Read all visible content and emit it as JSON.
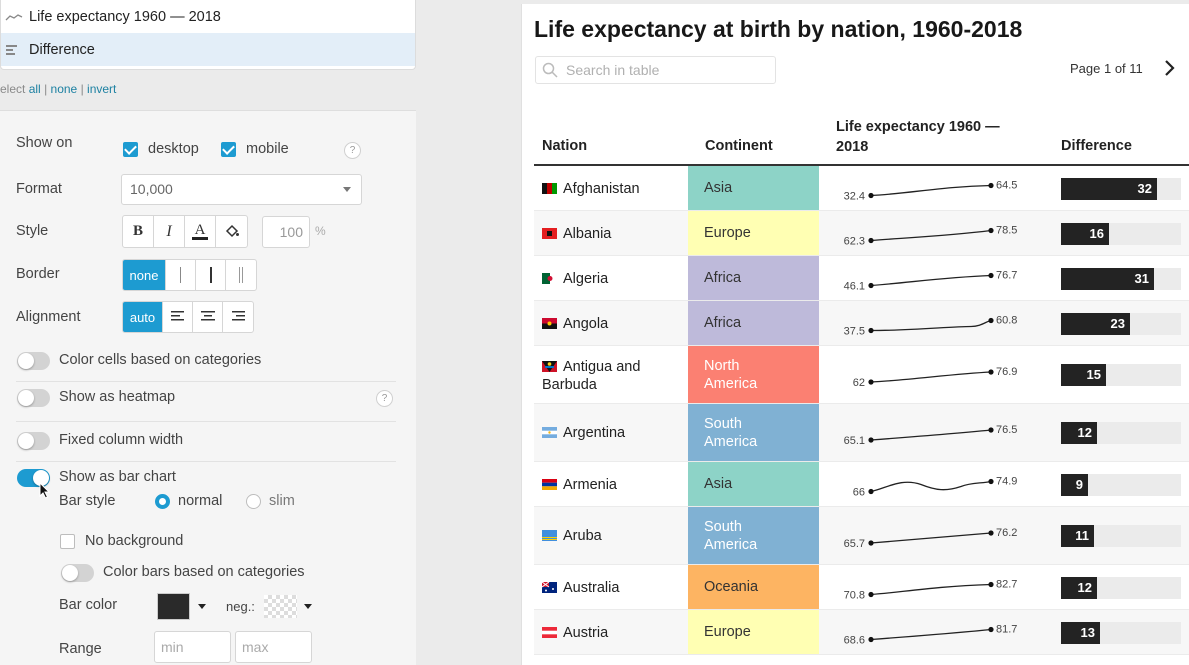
{
  "columns_list": {
    "items": [
      {
        "label": "Life expectancy 1960 — 2018",
        "icon": "sparkline-icon",
        "active": false
      },
      {
        "label": "Difference",
        "icon": "bar-icon",
        "active": true
      }
    ]
  },
  "select": {
    "prefix": "elect",
    "all": "all",
    "none": "none",
    "invert": "invert",
    "sep": "|"
  },
  "settings": {
    "show_on": {
      "label": "Show on",
      "desktop": "desktop",
      "mobile": "mobile",
      "help": "?"
    },
    "format": {
      "label": "Format",
      "value": "10,000"
    },
    "style": {
      "label": "Style",
      "bold": "B",
      "italic": "I",
      "color": "A",
      "opacity": "100",
      "unit": "%"
    },
    "border": {
      "label": "Border",
      "selected": "none"
    },
    "alignment": {
      "label": "Alignment",
      "selected": "auto"
    },
    "color_cells": {
      "label": "Color cells based on categories"
    },
    "heatmap": {
      "label": "Show as heatmap",
      "help": "?"
    },
    "fixed_width": {
      "label": "Fixed column width"
    },
    "bar_chart": {
      "label": "Show as bar chart"
    },
    "bar_style": {
      "label": "Bar style",
      "normal": "normal",
      "slim": "slim"
    },
    "no_background": {
      "label": "No background"
    },
    "color_bars": {
      "label": "Color bars based on categories"
    },
    "bar_color": {
      "label": "Bar color",
      "neg": "neg.:",
      "color": "#2a2a2a"
    },
    "range": {
      "label": "Range",
      "min": "min",
      "max": "max"
    }
  },
  "table": {
    "title": "Life expectancy at birth by nation, 1960-2018",
    "search_placeholder": "Search in table",
    "pager": "Page 1 of 11",
    "headers": {
      "nation": "Nation",
      "continent": "Continent",
      "life1": "Life expectancy 1960 —",
      "life2": "2018",
      "difference": "Difference"
    },
    "continent_colors": {
      "Asia": "#8dd3c7",
      "Europe": "#ffffb3",
      "Africa": "#bebada",
      "North America": "#fb8072",
      "South America": "#80b1d3",
      "Oceania": "#fdb462"
    },
    "rows": [
      {
        "nation": "Afghanistan",
        "continent": "Asia",
        "start": "32.4",
        "end": "64.5",
        "diff": "32",
        "flag": "afghanistan-flag-icon"
      },
      {
        "nation": "Albania",
        "continent": "Europe",
        "start": "62.3",
        "end": "78.5",
        "diff": "16",
        "flag": "albania-flag-icon"
      },
      {
        "nation": "Algeria",
        "continent": "Africa",
        "start": "46.1",
        "end": "76.7",
        "diff": "31",
        "flag": "algeria-flag-icon"
      },
      {
        "nation": "Angola",
        "continent": "Africa",
        "start": "37.5",
        "end": "60.8",
        "diff": "23",
        "flag": "angola-flag-icon"
      },
      {
        "nation": "Antigua and Barbuda",
        "continent": "North America",
        "start": "62",
        "end": "76.9",
        "diff": "15",
        "flag": "antigua-flag-icon"
      },
      {
        "nation": "Argentina",
        "continent": "South America",
        "start": "65.1",
        "end": "76.5",
        "diff": "12",
        "flag": "argentina-flag-icon"
      },
      {
        "nation": "Armenia",
        "continent": "Asia",
        "start": "66",
        "end": "74.9",
        "diff": "9",
        "flag": "armenia-flag-icon"
      },
      {
        "nation": "Aruba",
        "continent": "South America",
        "start": "65.7",
        "end": "76.2",
        "diff": "11",
        "flag": "aruba-flag-icon"
      },
      {
        "nation": "Australia",
        "continent": "Oceania",
        "start": "70.8",
        "end": "82.7",
        "diff": "12",
        "flag": "australia-flag-icon"
      },
      {
        "nation": "Austria",
        "continent": "Europe",
        "start": "68.6",
        "end": "81.7",
        "diff": "13",
        "flag": "austria-flag-icon"
      }
    ],
    "diff_max": 40
  }
}
